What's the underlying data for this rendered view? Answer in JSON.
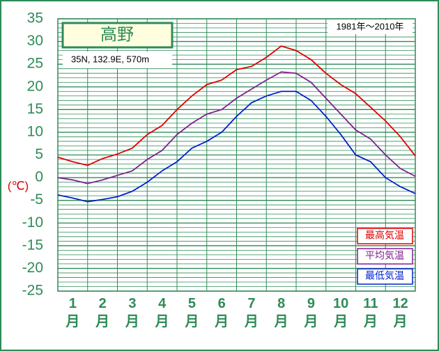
{
  "chart_data": {
    "type": "line",
    "title": "高野",
    "subtitle": "35N,  132.9E,  570m",
    "annotation": "1981年～2010年",
    "y_label": "(℃)",
    "x": [
      0,
      0.5,
      1,
      1.5,
      2,
      2.5,
      3,
      3.5,
      4,
      4.5,
      5,
      5.5,
      6,
      6.5,
      7,
      7.5,
      8,
      8.5,
      9,
      9.5,
      10,
      10.5,
      11,
      11.5,
      12
    ],
    "xlim": [
      0,
      12
    ],
    "xticks": [
      {
        "value": 0.5,
        "label": "1月"
      },
      {
        "value": 1.5,
        "label": "2月"
      },
      {
        "value": 2.5,
        "label": "3月"
      },
      {
        "value": 3.5,
        "label": "4月"
      },
      {
        "value": 4.5,
        "label": "5月"
      },
      {
        "value": 5.5,
        "label": "6月"
      },
      {
        "value": 6.5,
        "label": "7月"
      },
      {
        "value": 7.5,
        "label": "8月"
      },
      {
        "value": 8.5,
        "label": "9月"
      },
      {
        "value": 9.5,
        "label": "10月"
      },
      {
        "value": 10.5,
        "label": "11月"
      },
      {
        "value": 11.5,
        "label": "12月"
      }
    ],
    "ylim": [
      -25,
      35
    ],
    "yticks": [
      -25,
      -20,
      -15,
      -10,
      -5,
      0,
      5,
      10,
      15,
      20,
      25,
      30,
      35
    ],
    "grid": true,
    "minor_grid_step": 1,
    "legend": "lower right",
    "series": [
      {
        "name": "最高気温",
        "color": "#e00000",
        "values": [
          4.5,
          3.5,
          2.7,
          4.2,
          5.2,
          6.5,
          9.5,
          11.5,
          15,
          18,
          20.5,
          21.5,
          23.8,
          24.5,
          26.5,
          29,
          28,
          26,
          23,
          20.5,
          18.5,
          15.5,
          12.5,
          9,
          4.8
        ]
      },
      {
        "name": "平均気温",
        "color": "#7f1f8f",
        "values": [
          0,
          -0.5,
          -1.3,
          -0.5,
          0.5,
          1.5,
          4,
          6,
          9.5,
          12,
          14,
          15,
          17.5,
          19.5,
          21.5,
          23.3,
          23,
          21,
          17.5,
          14,
          10.5,
          8.5,
          5,
          2,
          0.3
        ]
      },
      {
        "name": "最低気温",
        "color": "#0020d0",
        "values": [
          -3.8,
          -4.5,
          -5.3,
          -4.8,
          -4.2,
          -3,
          -1,
          1.5,
          3.5,
          6.5,
          8,
          10,
          13.5,
          16.5,
          18,
          19,
          19,
          17,
          13.5,
          9.5,
          5,
          3.5,
          0,
          -2,
          -3.5
        ]
      }
    ]
  }
}
